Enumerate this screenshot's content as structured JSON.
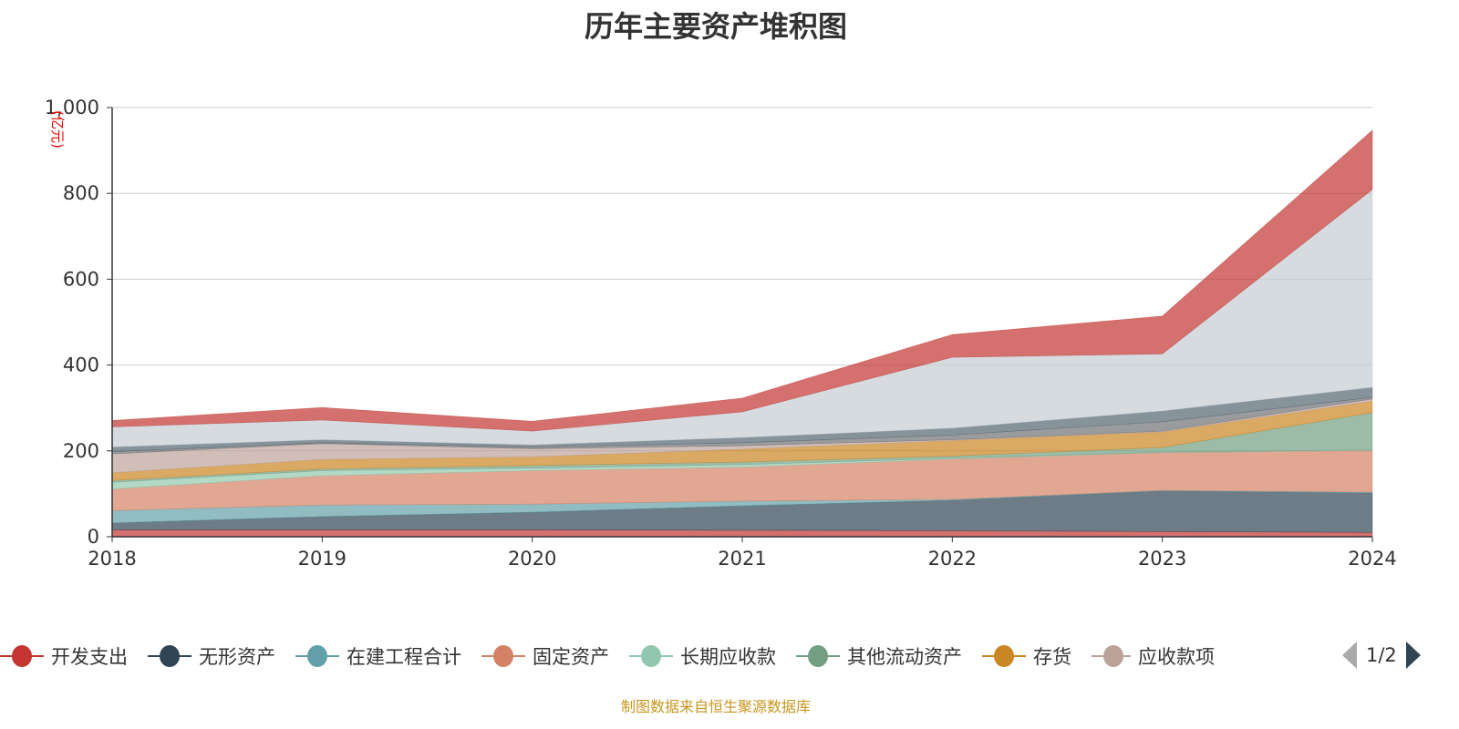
{
  "chart_data": {
    "type": "area",
    "stacked": true,
    "title": "历年主要资产堆积图",
    "ylabel": "(亿元)",
    "xlabel": "",
    "categories": [
      "2018",
      "2019",
      "2020",
      "2021",
      "2022",
      "2023",
      "2024"
    ],
    "ylim": [
      0,
      1000
    ],
    "yticks": [
      0,
      200,
      400,
      600,
      800,
      1000
    ],
    "ytick_labels": [
      "0",
      "200",
      "400",
      "600",
      "800",
      "1,000"
    ],
    "grid": true,
    "legend_placement": "bottom",
    "legend_page": "1/2",
    "series": [
      {
        "name": "开发支出",
        "color": "#c23531",
        "values": [
          16,
          16,
          16,
          15,
          14,
          12,
          10
        ]
      },
      {
        "name": "无形资产",
        "color": "#2f4554",
        "values": [
          16,
          31,
          41,
          57,
          71,
          95,
          92
        ]
      },
      {
        "name": "在建工程合计",
        "color": "#61a0a8",
        "values": [
          29,
          27,
          19,
          11,
          2,
          1,
          2
        ]
      },
      {
        "name": "固定资产",
        "color": "#d48265",
        "values": [
          50,
          68,
          78,
          79,
          94,
          88,
          97
        ]
      },
      {
        "name": "长期应收款",
        "color": "#91c7ae",
        "values": [
          16,
          12,
          6,
          6,
          2,
          1,
          1
        ]
      },
      {
        "name": "其他流动资产",
        "color": "#749f83",
        "values": [
          4,
          4,
          6,
          6,
          5,
          11,
          87
        ]
      },
      {
        "name": "存货",
        "color": "#ca8622",
        "values": [
          18,
          22,
          20,
          30,
          36,
          36,
          27
        ]
      },
      {
        "name": "应收款项",
        "color": "#bda29a",
        "values": [
          44,
          37,
          19,
          8,
          2,
          2,
          5
        ]
      },
      {
        "color": "#6e7074",
        "values": [
          5,
          2,
          4,
          7,
          11,
          22,
          4
        ]
      },
      {
        "color": "#546570",
        "values": [
          11,
          7,
          5,
          12,
          16,
          25,
          23
        ]
      },
      {
        "color": "#c4ccd3",
        "values": [
          47,
          46,
          32,
          60,
          165,
          133,
          461
        ]
      },
      {
        "color": "#c23531",
        "values": [
          15,
          29,
          23,
          32,
          53,
          88,
          138
        ]
      }
    ]
  },
  "footer": "制图数据来自恒生聚源数据库"
}
